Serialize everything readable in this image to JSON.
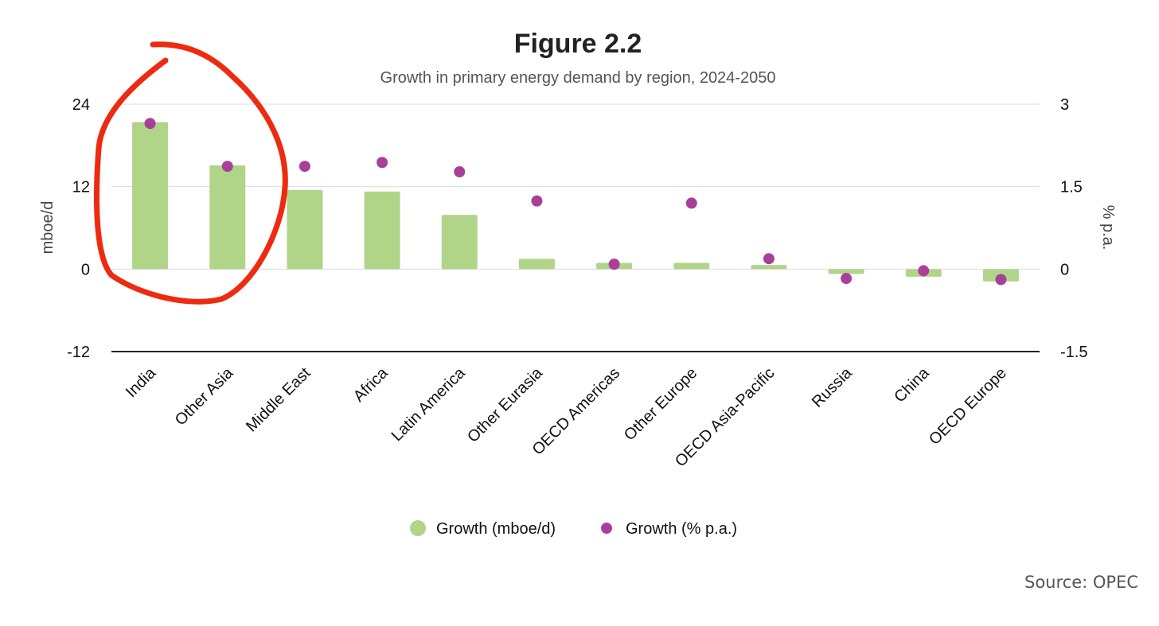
{
  "chart_data": {
    "type": "bar",
    "title": "Figure 2.2",
    "subtitle": "Growth in primary energy demand by region, 2024-2050",
    "ylabel": "mboe/d",
    "y2label": "% p.a.",
    "ylim": [
      -12,
      24
    ],
    "y2lim": [
      -1.5,
      3
    ],
    "yticks": [
      "24",
      "12",
      "0",
      "-12"
    ],
    "y2ticks": [
      "3",
      "1.5",
      "0",
      "-1.5"
    ],
    "categories": [
      "India",
      "Other Asia",
      "Middle East",
      "Africa",
      "Latin America",
      "Other Eurasia",
      "OECD Americas",
      "Other Europe",
      "OECD Asia-Pacific",
      "Russia",
      "China",
      "OECD Europe"
    ],
    "series": [
      {
        "name": "Growth (mboe/d)",
        "kind": "bar",
        "axis": "left",
        "color": "#b0d488",
        "values": [
          21.4,
          15.1,
          11.5,
          11.3,
          7.9,
          1.5,
          0.9,
          0.9,
          0.6,
          -0.7,
          -1.1,
          -1.8
        ]
      },
      {
        "name": "Growth (% p.a.)",
        "kind": "scatter",
        "axis": "right",
        "color": "#a8409a",
        "values": [
          2.65,
          1.87,
          1.87,
          1.94,
          1.77,
          1.24,
          0.09,
          1.2,
          0.19,
          -0.17,
          -0.03,
          -0.19
        ]
      }
    ],
    "grid": true,
    "legend": "bottom-center",
    "annotation": "red hand-drawn circle around India and Other Asia"
  },
  "source": "Source: OPEC"
}
